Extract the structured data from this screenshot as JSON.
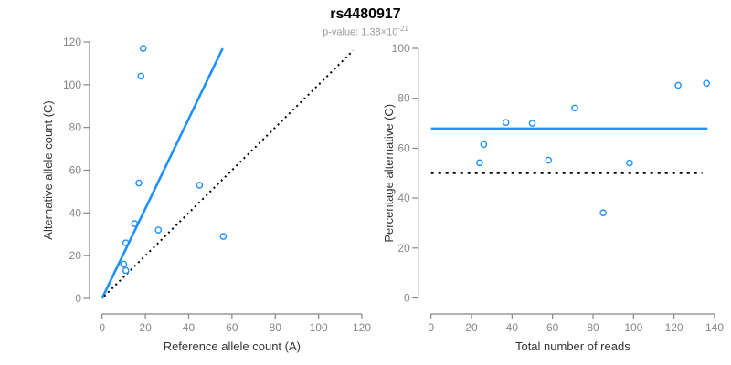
{
  "header": {
    "title": "rs4480917",
    "subtitle_prefix": "p-value: 1.38×10",
    "subtitle_exponent": "-21"
  },
  "style": {
    "accent_blue": "#1E90FF",
    "dotted_black": "#000000",
    "axis_gray": "#858585",
    "axis_title_dark": "#333333",
    "subtitle_gray": "#999999"
  },
  "chart_data": [
    {
      "type": "scatter",
      "panel": "left",
      "xlabel": "Reference allele count (A)",
      "ylabel": "Alternative allele count (C)",
      "xlim": [
        0,
        120
      ],
      "ylim": [
        0,
        120
      ],
      "xticks": [
        0,
        20,
        40,
        60,
        80,
        100,
        120
      ],
      "yticks": [
        0,
        20,
        40,
        60,
        80,
        100,
        120
      ],
      "grid": false,
      "legend": false,
      "point_color": "#1E90FF",
      "points": [
        [
          19,
          117
        ],
        [
          18,
          104
        ],
        [
          17,
          54
        ],
        [
          45,
          53
        ],
        [
          15,
          35
        ],
        [
          26,
          32
        ],
        [
          56,
          29
        ],
        [
          11,
          26
        ],
        [
          10,
          16
        ],
        [
          11,
          13
        ]
      ],
      "lines": [
        {
          "name": "fit-line",
          "style": "solid",
          "color": "#1E90FF",
          "width": 2.6,
          "from": [
            0,
            0
          ],
          "to": [
            55.7,
            117
          ]
        },
        {
          "name": "identity-line",
          "style": "dotted",
          "color": "#000000",
          "width": 2,
          "from": [
            1,
            1
          ],
          "to": [
            116,
            116
          ]
        }
      ]
    },
    {
      "type": "scatter",
      "panel": "right",
      "xlabel": "Total number of reads",
      "ylabel": "Percentage alternative (C)",
      "xlim": [
        0,
        140
      ],
      "ylim": [
        0,
        100
      ],
      "xticks": [
        0,
        20,
        40,
        60,
        80,
        100,
        120,
        140
      ],
      "yticks": [
        0,
        20,
        40,
        60,
        80,
        100
      ],
      "grid": false,
      "legend": false,
      "point_color": "#1E90FF",
      "points": [
        [
          24,
          54.2
        ],
        [
          26,
          61.5
        ],
        [
          37,
          70.3
        ],
        [
          50,
          70
        ],
        [
          58,
          55.2
        ],
        [
          71,
          76.1
        ],
        [
          85,
          34.1
        ],
        [
          98,
          54.1
        ],
        [
          122,
          85.2
        ],
        [
          136,
          86
        ]
      ],
      "lines": [
        {
          "name": "mean-line",
          "style": "solid",
          "color": "#1E90FF",
          "width": 3,
          "from": [
            0,
            67.8
          ],
          "to": [
            136.5,
            67.8
          ]
        },
        {
          "name": "expected-line",
          "style": "dotted",
          "color": "#000000",
          "width": 2,
          "from": [
            0,
            50
          ],
          "to": [
            134,
            50
          ]
        }
      ]
    }
  ]
}
